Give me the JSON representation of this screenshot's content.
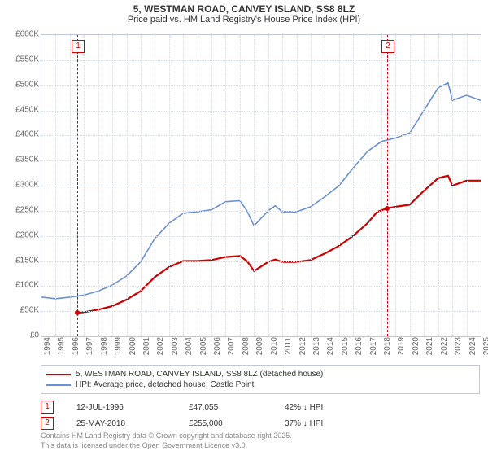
{
  "title_line1": "5, WESTMAN ROAD, CANVEY ISLAND, SS8 8LZ",
  "title_line2": "Price paid vs. HM Land Registry's House Price Index (HPI)",
  "chart": {
    "type": "line",
    "background_color": "#ffffff",
    "grid_color": "#d8dce5",
    "border_color": "#c0c8d8",
    "text_color": "#666666",
    "font_size_ticks": 10,
    "font_size_title": 12,
    "ylim": [
      0,
      600000
    ],
    "ytick_step": 50000,
    "yticks": [
      "£0",
      "£50K",
      "£100K",
      "£150K",
      "£200K",
      "£250K",
      "£300K",
      "£350K",
      "£400K",
      "£450K",
      "£500K",
      "£550K",
      "£600K"
    ],
    "xlim": [
      1994,
      2025
    ],
    "xticks": [
      "1994",
      "1995",
      "1996",
      "1997",
      "1998",
      "1999",
      "2000",
      "2001",
      "2002",
      "2003",
      "2004",
      "2005",
      "2006",
      "2007",
      "2008",
      "2009",
      "2010",
      "2011",
      "2012",
      "2013",
      "2014",
      "2015",
      "2016",
      "2017",
      "2018",
      "2019",
      "2020",
      "2021",
      "2022",
      "2023",
      "2024",
      "2025"
    ],
    "series": [
      {
        "name": "price_paid",
        "legend": "5, WESTMAN ROAD, CANVEY ISLAND, SS8 8LZ (detached house)",
        "color": "#d00000",
        "line_width": 2.2,
        "x": [
          1996.53,
          1997,
          1998,
          1999,
          2000,
          2001,
          2002,
          2003,
          2004,
          2005,
          2006,
          2007,
          2008,
          2008.5,
          2009,
          2010,
          2010.5,
          2011,
          2012,
          2013,
          2014,
          2015,
          2016,
          2017,
          2017.7,
          2018.4,
          2019,
          2020,
          2021,
          2022,
          2022.7,
          2023,
          2024,
          2025
        ],
        "y": [
          47055,
          48000,
          53000,
          60000,
          73000,
          90000,
          118000,
          138000,
          150000,
          150000,
          152000,
          158000,
          160000,
          150000,
          130000,
          148000,
          153000,
          148000,
          148000,
          152000,
          165000,
          180000,
          200000,
          225000,
          248000,
          255000,
          258000,
          262000,
          290000,
          315000,
          320000,
          300000,
          310000,
          310000
        ]
      },
      {
        "name": "hpi",
        "legend": "HPI: Average price, detached house, Castle Point",
        "color": "#6a8fd4",
        "line_width": 1.6,
        "x": [
          1994,
          1995,
          1996,
          1997,
          1998,
          1999,
          2000,
          2001,
          2002,
          2003,
          2004,
          2005,
          2006,
          2007,
          2008,
          2008.5,
          2009,
          2010,
          2010.5,
          2011,
          2012,
          2013,
          2014,
          2015,
          2016,
          2017,
          2018,
          2019,
          2020,
          2021,
          2022,
          2022.7,
          2023,
          2024,
          2025
        ],
        "y": [
          78000,
          75000,
          78000,
          82000,
          90000,
          102000,
          120000,
          148000,
          195000,
          225000,
          245000,
          248000,
          252000,
          268000,
          270000,
          250000,
          220000,
          250000,
          260000,
          248000,
          248000,
          258000,
          278000,
          300000,
          335000,
          368000,
          388000,
          395000,
          405000,
          450000,
          495000,
          505000,
          470000,
          480000,
          470000
        ]
      }
    ],
    "markers": [
      {
        "n": "1",
        "x": 1996.53,
        "y": 47055,
        "date": "12-JUL-1996",
        "price": "£47,055",
        "delta": "42% ↓ HPI",
        "vline_color": "#d00000"
      },
      {
        "n": "2",
        "x": 2018.4,
        "y": 255000,
        "date": "25-MAY-2018",
        "price": "£255,000",
        "delta": "37% ↓ HPI",
        "vline_color": "#d00000"
      }
    ]
  },
  "footer_line1": "Contains HM Land Registry data © Crown copyright and database right 2025.",
  "footer_line2": "This data is licensed under the Open Government Licence v3.0."
}
